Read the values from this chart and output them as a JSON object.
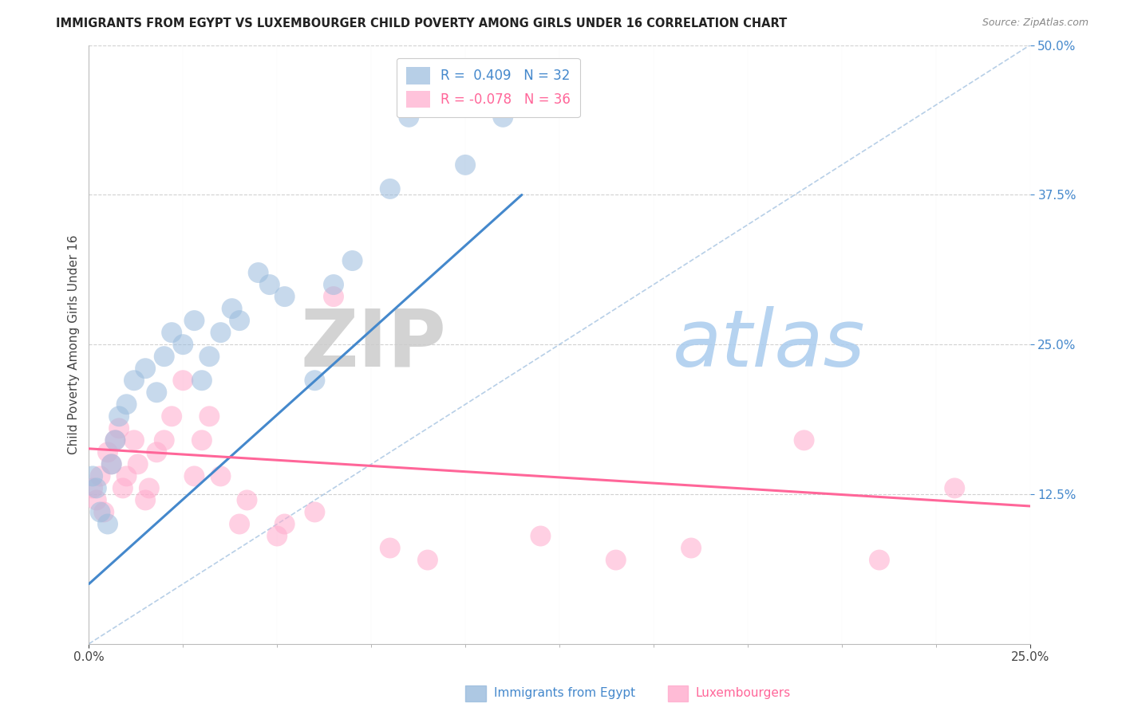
{
  "title": "IMMIGRANTS FROM EGYPT VS LUXEMBOURGER CHILD POVERTY AMONG GIRLS UNDER 16 CORRELATION CHART",
  "source": "Source: ZipAtlas.com",
  "ylabel": "Child Poverty Among Girls Under 16",
  "legend_label1": "Immigrants from Egypt",
  "legend_label2": "Luxembourgers",
  "R1": 0.409,
  "N1": 32,
  "R2": -0.078,
  "N2": 36,
  "color_blue": "#99BBDD",
  "color_pink": "#FFAACC",
  "color_line_blue": "#4488CC",
  "color_line_pink": "#FF6699",
  "watermark_ZIP": "ZIP",
  "watermark_atlas": "atlas",
  "watermark_color_ZIP": "#CCCCCC",
  "watermark_color_atlas": "#AACCEE",
  "background_color": "#FFFFFF",
  "egypt_x": [
    0.001,
    0.002,
    0.003,
    0.005,
    0.006,
    0.007,
    0.008,
    0.01,
    0.012,
    0.015,
    0.018,
    0.02,
    0.022,
    0.025,
    0.028,
    0.03,
    0.032,
    0.035,
    0.038,
    0.04,
    0.045,
    0.048,
    0.052,
    0.06,
    0.065,
    0.07,
    0.08,
    0.085,
    0.1,
    0.105,
    0.11,
    0.115
  ],
  "egypt_y": [
    0.14,
    0.13,
    0.11,
    0.1,
    0.15,
    0.17,
    0.19,
    0.2,
    0.22,
    0.23,
    0.21,
    0.24,
    0.26,
    0.25,
    0.27,
    0.22,
    0.24,
    0.26,
    0.28,
    0.27,
    0.31,
    0.3,
    0.29,
    0.22,
    0.3,
    0.32,
    0.38,
    0.44,
    0.4,
    0.45,
    0.44,
    0.46
  ],
  "lux_x": [
    0.001,
    0.002,
    0.003,
    0.004,
    0.005,
    0.006,
    0.007,
    0.008,
    0.009,
    0.01,
    0.012,
    0.013,
    0.015,
    0.016,
    0.018,
    0.02,
    0.022,
    0.025,
    0.028,
    0.03,
    0.032,
    0.035,
    0.04,
    0.042,
    0.05,
    0.052,
    0.06,
    0.065,
    0.08,
    0.09,
    0.12,
    0.14,
    0.16,
    0.19,
    0.21,
    0.23
  ],
  "lux_y": [
    0.13,
    0.12,
    0.14,
    0.11,
    0.16,
    0.15,
    0.17,
    0.18,
    0.13,
    0.14,
    0.17,
    0.15,
    0.12,
    0.13,
    0.16,
    0.17,
    0.19,
    0.22,
    0.14,
    0.17,
    0.19,
    0.14,
    0.1,
    0.12,
    0.09,
    0.1,
    0.11,
    0.29,
    0.08,
    0.07,
    0.09,
    0.07,
    0.08,
    0.17,
    0.07,
    0.13
  ],
  "blue_line_x0": 0.0,
  "blue_line_y0": 0.05,
  "blue_line_x1": 0.115,
  "blue_line_y1": 0.375,
  "pink_line_x0": 0.0,
  "pink_line_y0": 0.163,
  "pink_line_x1": 0.25,
  "pink_line_y1": 0.115,
  "xmin": 0.0,
  "xmax": 0.25,
  "ymin": 0.0,
  "ymax": 0.5
}
